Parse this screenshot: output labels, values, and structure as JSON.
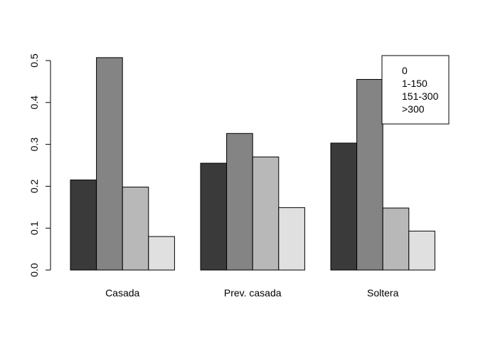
{
  "chart_data": {
    "type": "bar",
    "title": "",
    "xlabel": "",
    "ylabel": "",
    "ylim": [
      0,
      0.5
    ],
    "yticks": [
      "0.0",
      "0.1",
      "0.2",
      "0.3",
      "0.4",
      "0.5"
    ],
    "ytick_values": [
      0,
      0.1,
      0.2,
      0.3,
      0.4,
      0.5
    ],
    "categories": [
      "Casada",
      "Prev. casada",
      "Soltera"
    ],
    "grid": false,
    "legend_position": "top-right",
    "series": [
      {
        "name": "0",
        "color": "#3a3a3a",
        "values": [
          0.215,
          0.255,
          0.303
        ]
      },
      {
        "name": "1-150",
        "color": "#848484",
        "values": [
          0.507,
          0.326,
          0.455
        ]
      },
      {
        "name": "151-300",
        "color": "#b8b8b8",
        "values": [
          0.198,
          0.27,
          0.148
        ]
      },
      {
        "name": ">300",
        "color": "#e0e0e0",
        "values": [
          0.08,
          0.149,
          0.093
        ]
      }
    ]
  }
}
